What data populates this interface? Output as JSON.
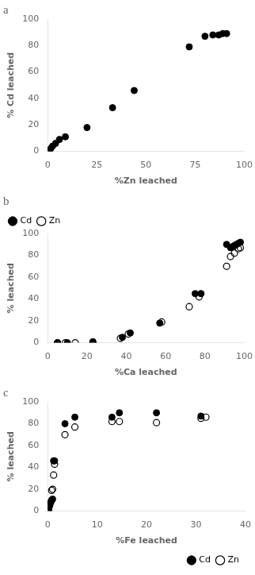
{
  "chart_data": [
    {
      "type": "scatter",
      "title": "a",
      "xlabel": "%Zn leached",
      "ylabel": "% Cd leached",
      "xlim": [
        0,
        100
      ],
      "ylim": [
        0,
        100
      ],
      "xticks": [
        0,
        25,
        50,
        75,
        100
      ],
      "yticks": [
        0,
        20,
        40,
        60,
        80,
        100
      ],
      "grid": false,
      "series": [
        {
          "color": "#000000",
          "marker": "circle",
          "x": [
            0.5,
            1.5,
            2.5,
            4,
            6,
            9,
            20,
            33,
            44,
            72,
            80,
            84,
            87,
            89,
            91
          ],
          "values": [
            0.5,
            2,
            4,
            6,
            9,
            11,
            18,
            33,
            46,
            79,
            87,
            88,
            88,
            89,
            89
          ]
        }
      ]
    },
    {
      "type": "scatter",
      "title": "b",
      "xlabel": "%Ca leached",
      "ylabel": "% leached",
      "xlim": [
        0,
        100
      ],
      "ylim": [
        0,
        100
      ],
      "xticks": [
        0,
        20,
        40,
        60,
        80,
        100
      ],
      "yticks": [
        0,
        20,
        40,
        60,
        80,
        100
      ],
      "grid": false,
      "legend": "upper left",
      "series": [
        {
          "name": "Cd",
          "color": "#000000",
          "marker": "circle",
          "x": [
            5,
            10,
            23,
            38,
            42,
            57,
            75,
            78,
            91,
            93,
            94,
            95,
            96,
            97,
            98
          ],
          "values": [
            0,
            0,
            1,
            5,
            9,
            18,
            45,
            45,
            90,
            87,
            88,
            89,
            90,
            91,
            92
          ]
        },
        {
          "name": "Zn",
          "color": "#000000",
          "marker": "open circle",
          "x": [
            5,
            9,
            14,
            23,
            37,
            41,
            58,
            72,
            77,
            91,
            93,
            95,
            97,
            98
          ],
          "values": [
            0,
            0,
            0,
            0,
            4,
            8,
            19,
            33,
            42,
            70,
            79,
            82,
            86,
            87
          ]
        }
      ]
    },
    {
      "type": "scatter",
      "title": "c",
      "xlabel": "%Fe leached",
      "ylabel": "% leached",
      "xlim": [
        0,
        40
      ],
      "ylim": [
        0,
        100
      ],
      "xticks": [
        0,
        10,
        20,
        30,
        40
      ],
      "yticks": [
        0,
        20,
        40,
        60,
        80,
        100
      ],
      "grid": false,
      "legend": "lower right",
      "series": [
        {
          "name": "Cd",
          "color": "#000000",
          "marker": "circle",
          "x": [
            0.2,
            0.4,
            0.6,
            0.8,
            1.0,
            1.2,
            1.4,
            3.5,
            5.5,
            13,
            14.5,
            22,
            31
          ],
          "values": [
            2,
            6,
            8,
            10,
            11,
            46,
            46,
            80,
            86,
            86,
            90,
            90,
            87
          ]
        },
        {
          "name": "Zn",
          "color": "#000000",
          "marker": "open circle",
          "x": [
            0.2,
            0.4,
            0.6,
            0.8,
            1.0,
            1.2,
            1.4,
            3.5,
            5.5,
            13,
            14.5,
            22,
            31,
            32
          ],
          "values": [
            1,
            5,
            8,
            19,
            20,
            33,
            43,
            70,
            77,
            82,
            82,
            81,
            85,
            86
          ]
        }
      ]
    }
  ]
}
